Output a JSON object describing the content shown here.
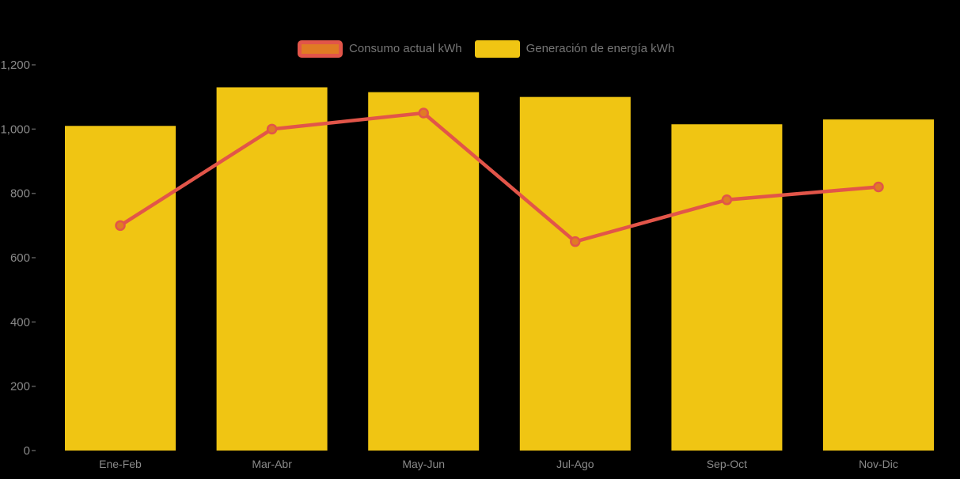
{
  "chart_data": {
    "type": "combo",
    "title": "",
    "xlabel": "",
    "ylabel": "",
    "categories": [
      "Ene-Feb",
      "Mar-Abr",
      "May-Jun",
      "Jul-Ago",
      "Sep-Oct",
      "Nov-Dic"
    ],
    "series": [
      {
        "name": "Consumo actual kWh",
        "type": "line",
        "values": [
          700,
          1000,
          1050,
          650,
          780,
          820
        ],
        "color": "#E25549",
        "point_fill": "#E07B24"
      },
      {
        "name": "Generación de energía kWh",
        "type": "bar",
        "values": [
          1010,
          1130,
          1115,
          1100,
          1015,
          1030
        ],
        "color": "#F0C513"
      }
    ],
    "ylim": [
      0,
      1200
    ],
    "ytick_values": [
      0,
      200,
      400,
      600,
      800,
      1000,
      1200
    ],
    "ytick_labels": [
      "0",
      "200",
      "400",
      "600",
      "800",
      "1,000",
      "1,200"
    ],
    "legend_position": "top",
    "grid": false,
    "background": "#000000",
    "axis_label_color": "#8A8A8A",
    "legend_label_color": "#757575",
    "tick_color": "#5A5A5A"
  }
}
